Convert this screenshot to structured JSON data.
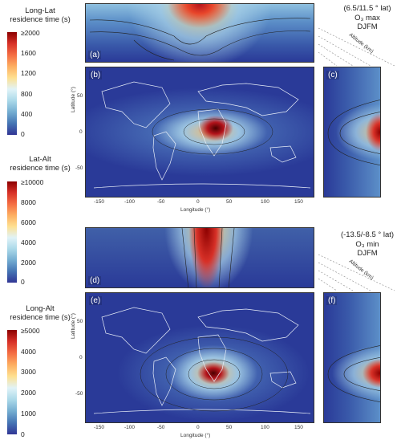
{
  "colorbars": [
    {
      "title_line1": "Long-Lat",
      "title_line2": "residence time (s)",
      "ticks": [
        "≥2000",
        "1600",
        "1200",
        "800",
        "400",
        "0"
      ]
    },
    {
      "title_line1": "Lat-Alt",
      "title_line2": "residence time (s)",
      "ticks": [
        "≥10000",
        "8000",
        "6000",
        "4000",
        "2000",
        "0"
      ]
    },
    {
      "title_line1": "Long-Alt",
      "title_line2": "residence time (s)",
      "ticks": [
        "≥5000",
        "4000",
        "3000",
        "2000",
        "1000",
        "0"
      ]
    }
  ],
  "case_top": {
    "line1": "(6.5/11.5 ° lat)",
    "line2": "O₃ max",
    "line3": "DJFM"
  },
  "case_bottom": {
    "line1": "(-13.5/-8.5 ° lat)",
    "line2": "O₃ min",
    "line3": "DJFM"
  },
  "panel_labels": {
    "a": "(a)",
    "b": "(b)",
    "c": "(c)",
    "d": "(d)",
    "e": "(e)",
    "f": "(f)"
  },
  "axes": {
    "lon_label": "Longitude (°)",
    "lat_label": "Latitude (°)",
    "alt_label": "Altitude (km)",
    "lon_ticks": [
      "-150",
      "-100",
      "-50",
      "0",
      "50",
      "100",
      "150"
    ],
    "lat_ticks": [
      "50",
      "0",
      "-50"
    ]
  },
  "colors": {
    "low": "#2a3a98",
    "mid": "#a9d0e8",
    "high": "#b3131b"
  }
}
